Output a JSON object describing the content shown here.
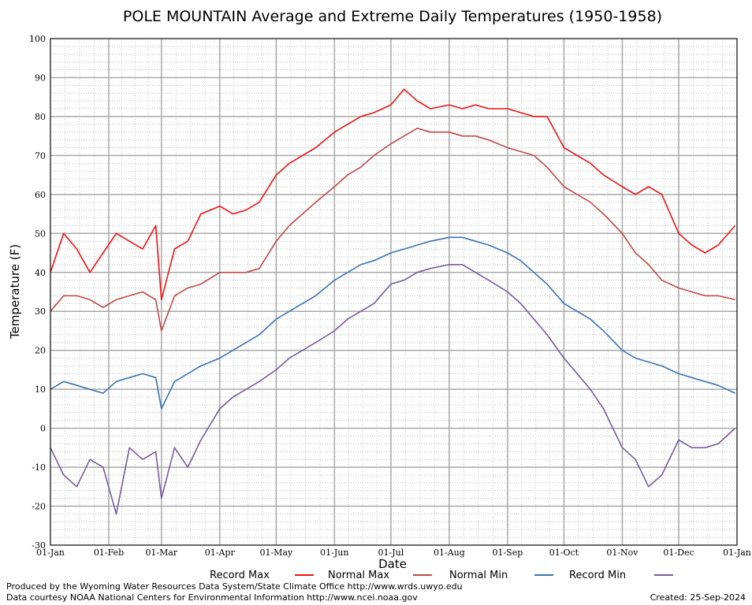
{
  "chart_data": {
    "type": "line",
    "title": "POLE MOUNTAIN Average and Extreme Daily Temperatures (1950-1958)",
    "xlabel": "Date",
    "ylabel": "Temperature (F)",
    "ylim": [
      -30,
      100
    ],
    "yticks": [
      "100",
      "90",
      "80",
      "70",
      "60",
      "50",
      "40",
      "30",
      "20",
      "10",
      "0",
      "-10",
      "-20",
      "-30"
    ],
    "xticks": [
      "01-Jan",
      "01-Feb",
      "01-Mar",
      "01-Apr",
      "01-May",
      "01-Jun",
      "01-Jul",
      "01-Aug",
      "01-Sep",
      "01-Oct",
      "01-Nov",
      "01-Dec",
      "01-Jan"
    ],
    "grid": true,
    "legend_position": "bottom",
    "series": [
      {
        "name": "Record Max",
        "color": "#ee1111",
        "x_day": [
          1,
          8,
          15,
          22,
          29,
          36,
          43,
          50,
          57,
          60,
          67,
          74,
          81,
          91,
          98,
          105,
          112,
          121,
          128,
          135,
          142,
          152,
          159,
          166,
          173,
          182,
          189,
          196,
          203,
          213,
          220,
          227,
          234,
          244,
          251,
          258,
          265,
          274,
          281,
          288,
          295,
          305,
          312,
          319,
          326,
          335,
          342,
          349,
          356,
          365
        ],
        "values": [
          40,
          50,
          46,
          40,
          45,
          50,
          48,
          46,
          52,
          33,
          46,
          48,
          55,
          57,
          55,
          56,
          58,
          65,
          68,
          70,
          72,
          76,
          78,
          80,
          81,
          83,
          87,
          84,
          82,
          83,
          82,
          83,
          82,
          82,
          81,
          80,
          80,
          72,
          70,
          68,
          65,
          62,
          60,
          62,
          60,
          50,
          47,
          45,
          47,
          52
        ]
      },
      {
        "name": "Normal Max",
        "color": "#c04848",
        "x_day": [
          1,
          8,
          15,
          22,
          29,
          36,
          43,
          50,
          57,
          60,
          67,
          74,
          81,
          91,
          98,
          105,
          112,
          121,
          128,
          135,
          142,
          152,
          159,
          166,
          173,
          182,
          189,
          196,
          203,
          213,
          220,
          227,
          234,
          244,
          251,
          258,
          265,
          274,
          281,
          288,
          295,
          305,
          312,
          319,
          326,
          335,
          342,
          349,
          356,
          365
        ],
        "values": [
          30,
          34,
          34,
          33,
          31,
          33,
          34,
          35,
          33,
          25,
          34,
          36,
          37,
          40,
          40,
          40,
          41,
          48,
          52,
          55,
          58,
          62,
          65,
          67,
          70,
          73,
          75,
          77,
          76,
          76,
          75,
          75,
          74,
          72,
          71,
          70,
          67,
          62,
          60,
          58,
          55,
          50,
          45,
          42,
          38,
          36,
          35,
          34,
          34,
          33
        ]
      },
      {
        "name": "Normal Min",
        "color": "#3a74b0",
        "x_day": [
          1,
          8,
          15,
          22,
          29,
          36,
          43,
          50,
          57,
          60,
          67,
          74,
          81,
          91,
          98,
          105,
          112,
          121,
          128,
          135,
          142,
          152,
          159,
          166,
          173,
          182,
          189,
          196,
          203,
          213,
          220,
          227,
          234,
          244,
          251,
          258,
          265,
          274,
          281,
          288,
          295,
          305,
          312,
          319,
          326,
          335,
          342,
          349,
          356,
          365
        ],
        "values": [
          10,
          12,
          11,
          10,
          9,
          12,
          13,
          14,
          13,
          5,
          12,
          14,
          16,
          18,
          20,
          22,
          24,
          28,
          30,
          32,
          34,
          38,
          40,
          42,
          43,
          45,
          46,
          47,
          48,
          49,
          49,
          48,
          47,
          45,
          43,
          40,
          37,
          32,
          30,
          28,
          25,
          20,
          18,
          17,
          16,
          14,
          13,
          12,
          11,
          9
        ]
      },
      {
        "name": "Record Min",
        "color": "#7a5a9e",
        "x_day": [
          1,
          8,
          15,
          22,
          29,
          36,
          43,
          50,
          57,
          60,
          67,
          74,
          81,
          91,
          98,
          105,
          112,
          121,
          128,
          135,
          142,
          152,
          159,
          166,
          173,
          182,
          189,
          196,
          203,
          213,
          220,
          227,
          234,
          244,
          251,
          258,
          265,
          274,
          281,
          288,
          295,
          305,
          312,
          319,
          326,
          335,
          342,
          349,
          356,
          365
        ],
        "values": [
          -5,
          -12,
          -15,
          -8,
          -10,
          -22,
          -5,
          -8,
          -6,
          -18,
          -5,
          -10,
          -3,
          5,
          8,
          10,
          12,
          15,
          18,
          20,
          22,
          25,
          28,
          30,
          32,
          37,
          38,
          40,
          41,
          42,
          42,
          40,
          38,
          35,
          32,
          28,
          24,
          18,
          14,
          10,
          5,
          -5,
          -8,
          -15,
          -12,
          -3,
          -5,
          -5,
          -4,
          0
        ]
      }
    ]
  },
  "legend": [
    {
      "label": "Record Max",
      "color": "#ee1111"
    },
    {
      "label": "Normal Max",
      "color": "#c04848"
    },
    {
      "label": "Normal Min",
      "color": "#3a74b0"
    },
    {
      "label": "Record Min",
      "color": "#7a5a9e"
    }
  ],
  "footer": {
    "produced": "Produced by the Wyoming Water Resources Data System/State Climate Office http://www.wrds.uwyo.edu",
    "courtesy": "Data courtesy NOAA National Centers for Environmental Information http://www.ncei.noaa.gov",
    "created": "Created:  25-Sep-2024"
  }
}
